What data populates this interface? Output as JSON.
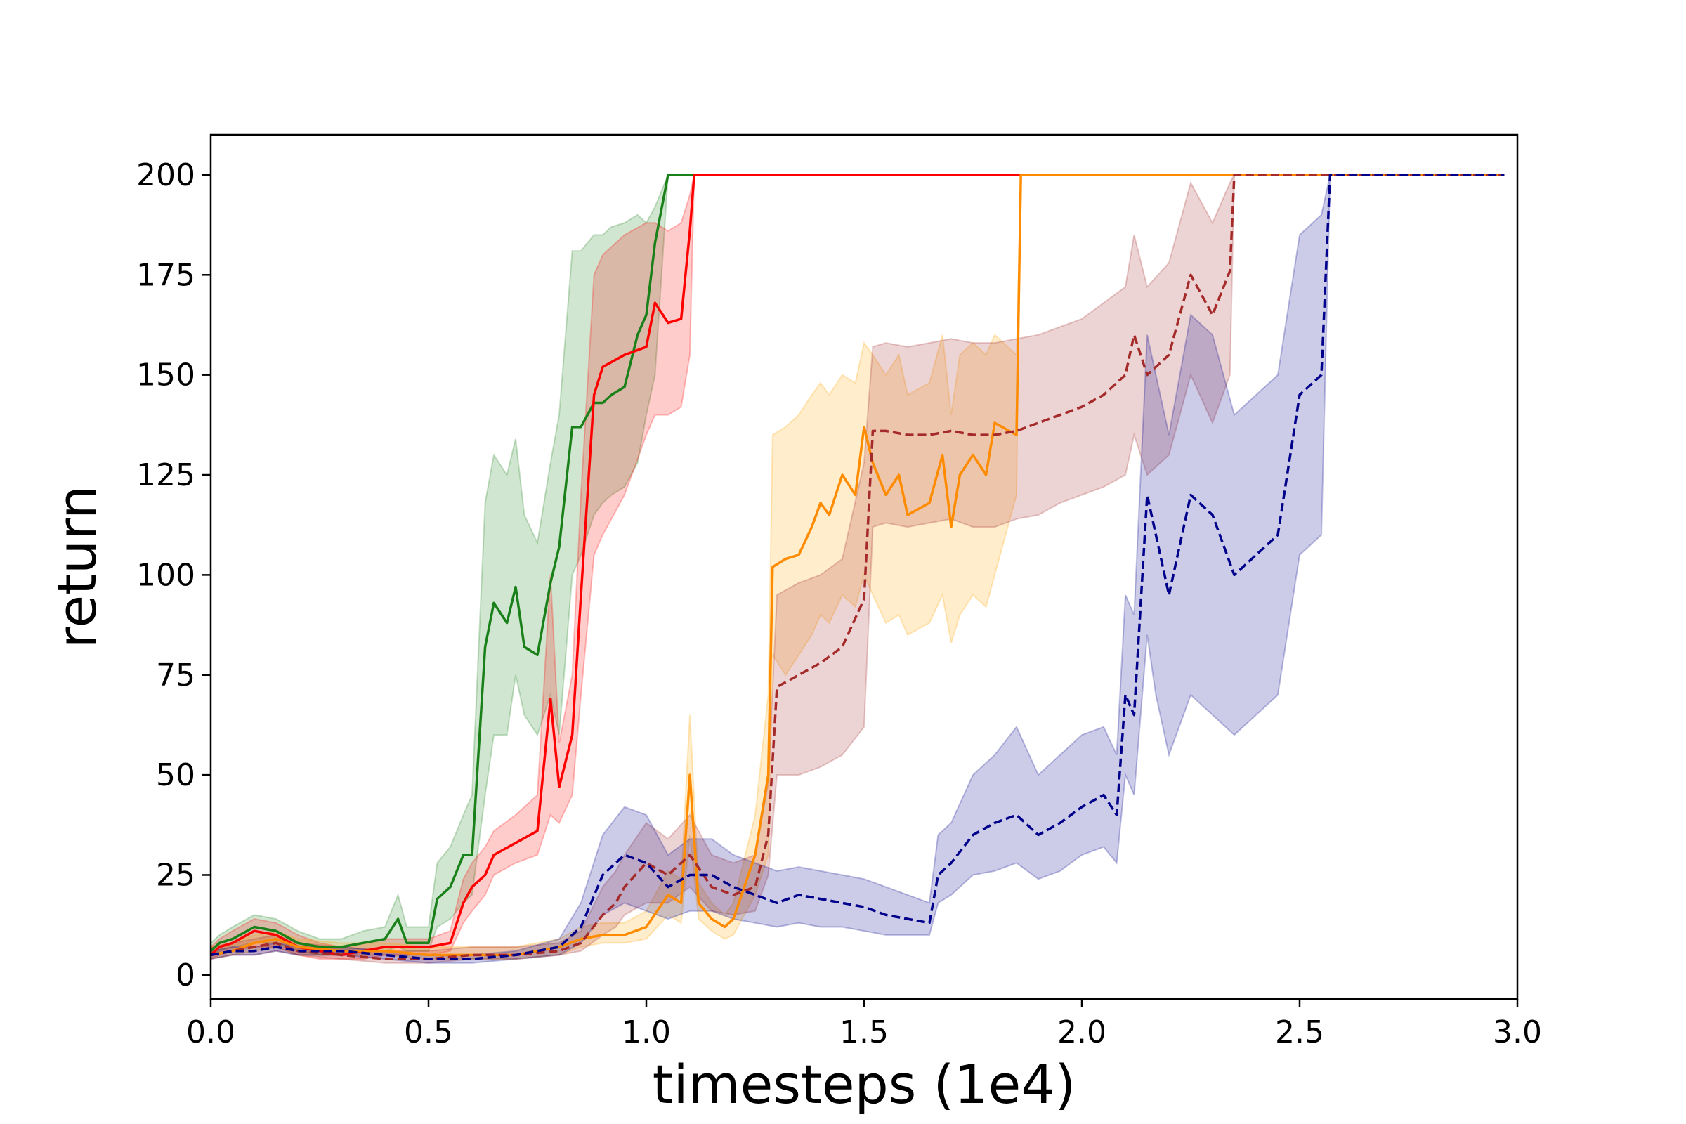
{
  "chart_data": {
    "type": "line",
    "title": "",
    "xlabel": "timesteps (1e4)",
    "ylabel": "return",
    "xlim": [
      0.0,
      3.0
    ],
    "ylim": [
      -6,
      210
    ],
    "x_ticks": [
      "0.0",
      "0.5",
      "1.0",
      "1.5",
      "2.0",
      "2.5",
      "3.0"
    ],
    "y_ticks": [
      "0",
      "25",
      "50",
      "75",
      "100",
      "125",
      "150",
      "175",
      "200"
    ],
    "grid": false,
    "legend": "none",
    "series": [
      {
        "color": "#1a801a",
        "band_color": "#1a801a",
        "dash": "solid",
        "x": [
          0.0,
          0.02,
          0.05,
          0.1,
          0.15,
          0.2,
          0.25,
          0.3,
          0.35,
          0.4,
          0.43,
          0.45,
          0.5,
          0.52,
          0.55,
          0.58,
          0.6,
          0.63,
          0.65,
          0.68,
          0.7,
          0.72,
          0.75,
          0.78,
          0.8,
          0.83,
          0.85,
          0.88,
          0.9,
          0.92,
          0.95,
          0.98,
          1.0,
          1.02,
          1.05,
          1.11,
          1.5,
          2.0,
          2.5,
          2.97
        ],
        "y": [
          6,
          8,
          9,
          12,
          11,
          8,
          7,
          7,
          8,
          9,
          14,
          8,
          8,
          19,
          22,
          30,
          30,
          82,
          93,
          88,
          97,
          82,
          80,
          98,
          107,
          137,
          137,
          143,
          143,
          145,
          147,
          160,
          165,
          183,
          200,
          200,
          200,
          200,
          200,
          200
        ],
        "lower": [
          5,
          6,
          7,
          8,
          8,
          6,
          5,
          5,
          6,
          6,
          7,
          6,
          6,
          12,
          14,
          18,
          20,
          45,
          60,
          60,
          75,
          65,
          60,
          70,
          60,
          100,
          105,
          115,
          118,
          120,
          122,
          128,
          140,
          150,
          200,
          200,
          200,
          200,
          200,
          200
        ],
        "upper": [
          8,
          10,
          12,
          15,
          14,
          11,
          9,
          9,
          11,
          12,
          20,
          12,
          12,
          28,
          32,
          40,
          45,
          118,
          130,
          125,
          134,
          115,
          108,
          128,
          140,
          181,
          181,
          185,
          185,
          187,
          188,
          190,
          188,
          192,
          200,
          200,
          200,
          200,
          200,
          200
        ]
      },
      {
        "color": "#ff0000",
        "band_color": "#ff0000",
        "dash": "solid",
        "x": [
          0.0,
          0.02,
          0.05,
          0.1,
          0.15,
          0.2,
          0.25,
          0.3,
          0.35,
          0.4,
          0.45,
          0.5,
          0.55,
          0.58,
          0.6,
          0.63,
          0.65,
          0.7,
          0.75,
          0.78,
          0.8,
          0.83,
          0.85,
          0.88,
          0.9,
          0.95,
          1.0,
          1.02,
          1.05,
          1.08,
          1.1,
          1.11,
          1.5,
          2.0,
          2.5,
          2.97
        ],
        "y": [
          5,
          7,
          8,
          11,
          10,
          7,
          6,
          5,
          6,
          7,
          7,
          7,
          8,
          18,
          22,
          25,
          30,
          33,
          36,
          69,
          47,
          60,
          95,
          145,
          152,
          155,
          157,
          168,
          163,
          164,
          186,
          200,
          200,
          200,
          200,
          200
        ],
        "lower": [
          4,
          5,
          6,
          7,
          7,
          5,
          4,
          4,
          4,
          5,
          5,
          5,
          6,
          13,
          16,
          20,
          25,
          28,
          30,
          40,
          38,
          45,
          70,
          105,
          110,
          120,
          135,
          140,
          140,
          142,
          155,
          200,
          200,
          200,
          200,
          200
        ],
        "upper": [
          7,
          9,
          11,
          14,
          13,
          10,
          8,
          7,
          8,
          9,
          9,
          9,
          11,
          24,
          28,
          32,
          36,
          40,
          45,
          100,
          58,
          75,
          120,
          175,
          180,
          185,
          188,
          188,
          186,
          188,
          195,
          200,
          200,
          200,
          200,
          200
        ]
      },
      {
        "color": "#ff8c00",
        "band_color": "#ffa500",
        "dash": "solid",
        "x": [
          0.0,
          0.05,
          0.1,
          0.15,
          0.2,
          0.3,
          0.4,
          0.5,
          0.6,
          0.7,
          0.8,
          0.85,
          0.9,
          0.95,
          1.0,
          1.05,
          1.08,
          1.1,
          1.12,
          1.15,
          1.18,
          1.2,
          1.25,
          1.28,
          1.29,
          1.32,
          1.35,
          1.38,
          1.4,
          1.42,
          1.45,
          1.48,
          1.5,
          1.52,
          1.55,
          1.58,
          1.6,
          1.65,
          1.68,
          1.7,
          1.72,
          1.75,
          1.78,
          1.8,
          1.85,
          1.86,
          1.9,
          2.0,
          2.5,
          2.97
        ],
        "y": [
          5,
          6,
          8,
          9,
          7,
          6,
          6,
          5,
          5,
          5,
          7,
          9,
          10,
          10,
          12,
          20,
          18,
          50,
          18,
          14,
          12,
          14,
          30,
          50,
          102,
          104,
          105,
          112,
          118,
          115,
          125,
          120,
          137,
          128,
          120,
          125,
          115,
          118,
          130,
          112,
          125,
          130,
          125,
          138,
          135,
          200,
          200,
          200,
          200,
          200
        ],
        "lower": [
          4,
          5,
          6,
          7,
          5,
          5,
          5,
          4,
          4,
          4,
          5,
          7,
          8,
          8,
          9,
          15,
          13,
          35,
          14,
          11,
          9,
          10,
          20,
          30,
          80,
          75,
          80,
          85,
          90,
          88,
          95,
          92,
          100,
          95,
          88,
          90,
          85,
          88,
          95,
          83,
          90,
          95,
          92,
          100,
          120,
          200,
          200,
          200,
          200,
          200
        ],
        "upper": [
          7,
          8,
          10,
          11,
          9,
          8,
          8,
          7,
          7,
          7,
          9,
          12,
          13,
          13,
          16,
          26,
          24,
          65,
          23,
          18,
          15,
          18,
          40,
          70,
          135,
          137,
          140,
          145,
          148,
          145,
          150,
          148,
          158,
          155,
          150,
          155,
          145,
          148,
          160,
          140,
          155,
          158,
          155,
          160,
          155,
          200,
          200,
          200,
          200,
          200
        ]
      },
      {
        "color": "#a52a2a",
        "band_color": "#a52a2a",
        "dash": "dashed",
        "x": [
          0.0,
          0.05,
          0.1,
          0.15,
          0.2,
          0.3,
          0.4,
          0.5,
          0.6,
          0.7,
          0.8,
          0.85,
          0.9,
          0.93,
          0.95,
          1.0,
          1.05,
          1.1,
          1.15,
          1.2,
          1.25,
          1.28,
          1.3,
          1.35,
          1.4,
          1.45,
          1.5,
          1.52,
          1.55,
          1.6,
          1.65,
          1.7,
          1.75,
          1.8,
          1.85,
          1.9,
          1.95,
          2.0,
          2.05,
          2.1,
          2.12,
          2.15,
          2.2,
          2.25,
          2.3,
          2.34,
          2.35,
          2.5,
          2.97
        ],
        "y": [
          5,
          6,
          7,
          8,
          6,
          5,
          4,
          4,
          5,
          5,
          6,
          8,
          15,
          18,
          22,
          28,
          25,
          30,
          22,
          20,
          22,
          35,
          72,
          75,
          78,
          82,
          94,
          136,
          136,
          135,
          135,
          136,
          135,
          135,
          136,
          138,
          140,
          142,
          145,
          150,
          160,
          150,
          155,
          175,
          165,
          176,
          200,
          200,
          200
        ],
        "lower": [
          4,
          5,
          5,
          6,
          5,
          4,
          3,
          3,
          4,
          4,
          5,
          6,
          10,
          12,
          15,
          18,
          18,
          22,
          16,
          15,
          16,
          25,
          50,
          50,
          52,
          55,
          62,
          112,
          113,
          112,
          113,
          114,
          112,
          112,
          114,
          115,
          118,
          120,
          122,
          125,
          135,
          125,
          130,
          150,
          138,
          150,
          200,
          200,
          200
        ],
        "upper": [
          7,
          8,
          9,
          10,
          8,
          7,
          6,
          6,
          7,
          7,
          8,
          11,
          22,
          26,
          30,
          38,
          34,
          40,
          30,
          28,
          30,
          48,
          95,
          98,
          100,
          104,
          128,
          157,
          158,
          157,
          158,
          159,
          158,
          158,
          159,
          160,
          162,
          164,
          168,
          172,
          185,
          172,
          178,
          198,
          188,
          198,
          200,
          200,
          200
        ]
      },
      {
        "color": "#00008b",
        "band_color": "#00008b",
        "dash": "dashed",
        "x": [
          0.0,
          0.05,
          0.1,
          0.15,
          0.2,
          0.3,
          0.4,
          0.5,
          0.6,
          0.7,
          0.8,
          0.85,
          0.9,
          0.95,
          1.0,
          1.05,
          1.1,
          1.15,
          1.2,
          1.25,
          1.3,
          1.35,
          1.4,
          1.45,
          1.5,
          1.55,
          1.6,
          1.65,
          1.67,
          1.7,
          1.75,
          1.8,
          1.85,
          1.9,
          1.95,
          2.0,
          2.05,
          2.08,
          2.1,
          2.12,
          2.15,
          2.17,
          2.2,
          2.25,
          2.3,
          2.35,
          2.4,
          2.45,
          2.5,
          2.55,
          2.57,
          2.6,
          2.97
        ],
        "y": [
          5,
          6,
          6,
          7,
          6,
          6,
          5,
          4,
          4,
          5,
          7,
          12,
          25,
          30,
          28,
          22,
          25,
          25,
          22,
          20,
          18,
          20,
          19,
          18,
          17,
          15,
          14,
          13,
          25,
          28,
          35,
          38,
          40,
          35,
          38,
          42,
          45,
          40,
          70,
          65,
          120,
          110,
          95,
          120,
          115,
          100,
          105,
          110,
          145,
          150,
          200,
          200,
          200
        ],
        "lower": [
          4,
          5,
          5,
          6,
          5,
          5,
          4,
          3,
          3,
          4,
          5,
          8,
          15,
          18,
          16,
          14,
          16,
          16,
          14,
          13,
          12,
          13,
          12,
          12,
          11,
          10,
          10,
          10,
          18,
          20,
          25,
          26,
          28,
          24,
          26,
          30,
          32,
          28,
          50,
          45,
          85,
          70,
          55,
          70,
          65,
          60,
          65,
          70,
          105,
          110,
          200,
          200,
          200
        ],
        "upper": [
          6,
          7,
          7,
          8,
          7,
          7,
          6,
          5,
          5,
          6,
          9,
          18,
          35,
          42,
          40,
          30,
          34,
          34,
          30,
          28,
          26,
          27,
          26,
          25,
          24,
          22,
          20,
          18,
          35,
          38,
          50,
          55,
          62,
          50,
          55,
          60,
          62,
          55,
          95,
          90,
          160,
          150,
          135,
          165,
          160,
          140,
          145,
          150,
          185,
          190,
          200,
          200,
          200
        ]
      }
    ]
  }
}
